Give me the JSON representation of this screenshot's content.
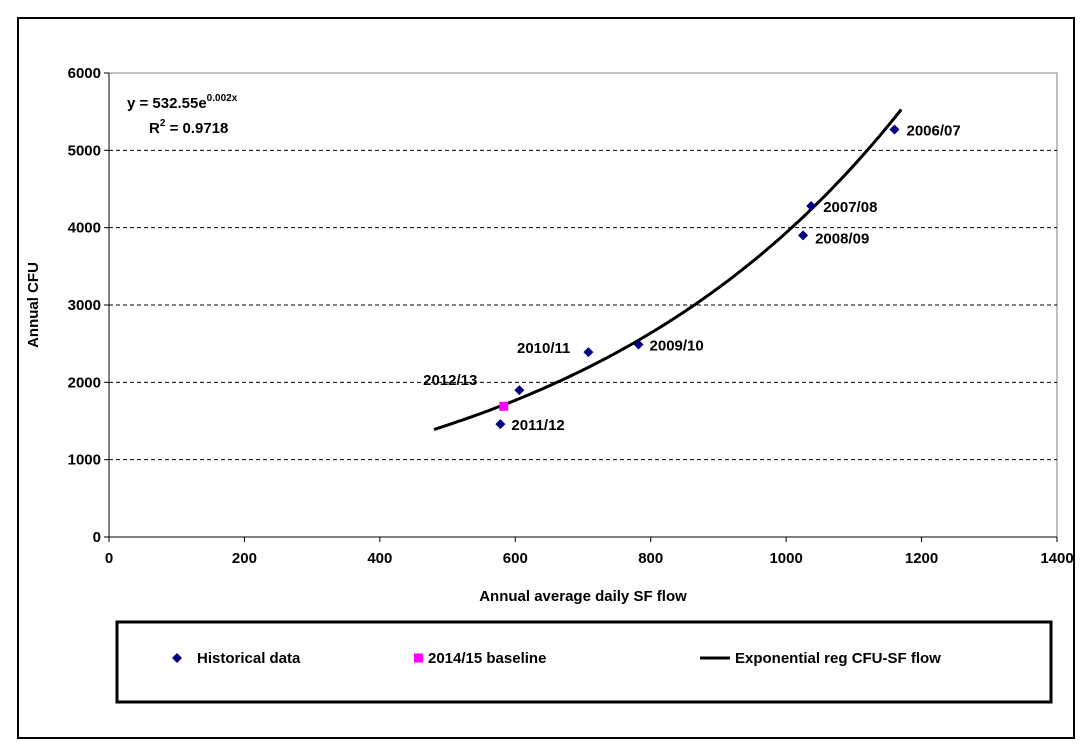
{
  "chart_data": {
    "type": "scatter",
    "title": "",
    "xlabel": "Annual average daily SF flow",
    "ylabel": "Annual CFU",
    "xlim": [
      0,
      1400
    ],
    "ylim": [
      0,
      6000
    ],
    "x_ticks": [
      "0",
      "200",
      "400",
      "600",
      "800",
      "1000",
      "1200",
      "1400"
    ],
    "y_ticks": [
      "0",
      "1000",
      "2000",
      "3000",
      "4000",
      "5000",
      "6000"
    ],
    "grid": "horizontal dashed",
    "series": [
      {
        "name": "Historical data",
        "marker": "diamond",
        "color": "#000080",
        "points": [
          {
            "x": 1160,
            "y": 5270,
            "label": "2006/07"
          },
          {
            "x": 1037,
            "y": 4280,
            "label": "2007/08"
          },
          {
            "x": 1025,
            "y": 3900,
            "label": "2008/09"
          },
          {
            "x": 782,
            "y": 2490,
            "label": "2009/10"
          },
          {
            "x": 708,
            "y": 2390,
            "label": "2010/11"
          },
          {
            "x": 578,
            "y": 1460,
            "label": "2011/12"
          },
          {
            "x": 606,
            "y": 1900,
            "label": "2012/13"
          }
        ]
      },
      {
        "name": "2014/15 baseline",
        "marker": "square",
        "color": "#ff00ff",
        "points": [
          {
            "x": 583,
            "y": 1690,
            "label": ""
          }
        ]
      },
      {
        "name": "Exponential reg CFU-SF flow",
        "type": "line",
        "color": "#000000",
        "equation": {
          "a": 532.55,
          "b": 0.002
        },
        "x_range": [
          480,
          1170
        ]
      }
    ],
    "annotations": {
      "equation_main": "y = 532.55e",
      "equation_exp": "0.002x",
      "r2_prefix": "R",
      "r2_sup": "2",
      "r2_value": " = 0.9718"
    },
    "legend": "bottom"
  }
}
